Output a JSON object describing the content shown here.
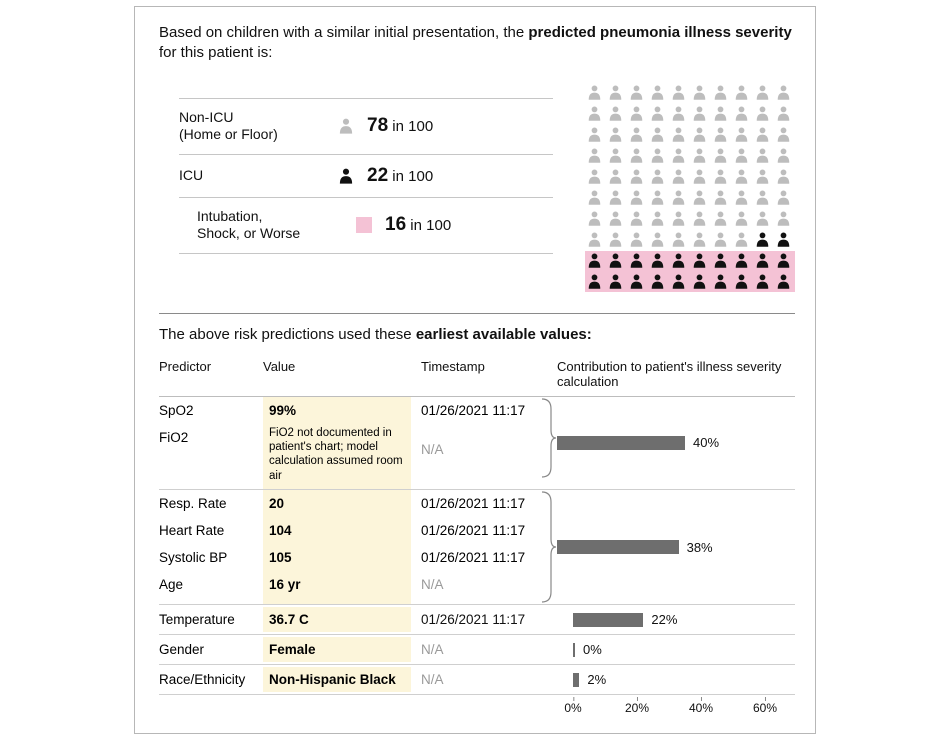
{
  "intro": {
    "prefix": "Based on children with a similar initial presentation, the ",
    "bold": "predicted pneumonia illness severity",
    "suffix": " for this patient is:"
  },
  "risk_rows": [
    {
      "label": "Non-ICU\n(Home or Floor)",
      "count": 78,
      "icon_color": "#bdbdbd",
      "icon_type": "person"
    },
    {
      "label": "ICU",
      "count": 22,
      "icon_color": "#111111",
      "icon_type": "person"
    },
    {
      "label": "Intubation,\nShock, or Worse",
      "count": 16,
      "icon_color": "#f4c2d5",
      "icon_type": "square",
      "sub": true
    }
  ],
  "risk_suffix": "in 100",
  "pictograph": {
    "cols": 10,
    "rows": 10,
    "gray_color": "#bdbdbd",
    "black_color": "#111111",
    "black_start": 78,
    "pink_start": 84,
    "pink_band_color": "#f4c2d5"
  },
  "table_intro": {
    "prefix": "The above risk predictions used these ",
    "bold": "earliest available values:"
  },
  "headers": {
    "c1": "Predictor",
    "c2": "Value",
    "c3": "Timestamp",
    "c4": "Contribution to patient's illness severity calculation"
  },
  "groups": [
    {
      "rows": [
        {
          "predictor": "SpO2",
          "value": "99%",
          "timestamp": "01/26/2021 11:17"
        },
        {
          "predictor": "FiO2",
          "value_note": "FiO2 not documented in patient's chart; model calculation assumed room air",
          "timestamp": "N/A"
        }
      ],
      "contribution": 40
    },
    {
      "rows": [
        {
          "predictor": "Resp. Rate",
          "value": "20",
          "timestamp": "01/26/2021 11:17"
        },
        {
          "predictor": "Heart Rate",
          "value": "104",
          "timestamp": "01/26/2021 11:17"
        },
        {
          "predictor": "Systolic BP",
          "value": "105",
          "timestamp": "01/26/2021 11:17"
        },
        {
          "predictor": "Age",
          "value": "16 yr",
          "timestamp": "N/A"
        }
      ],
      "contribution": 38
    }
  ],
  "single_rows": [
    {
      "predictor": "Temperature",
      "value": "36.7 C",
      "timestamp": "01/26/2021 11:17",
      "contribution": 22
    },
    {
      "predictor": "Gender",
      "value": "Female",
      "timestamp": "N/A",
      "contribution": 0
    },
    {
      "predictor": "Race/Ethnicity",
      "value": "Non-Hispanic Black",
      "timestamp": "N/A",
      "contribution": 2
    }
  ],
  "axis": {
    "max": 60,
    "ticks": [
      0,
      20,
      40,
      60
    ]
  },
  "colors": {
    "bar": "#6e6e6e",
    "value_bg": "#fcf5da",
    "border": "#cfcfcf"
  }
}
